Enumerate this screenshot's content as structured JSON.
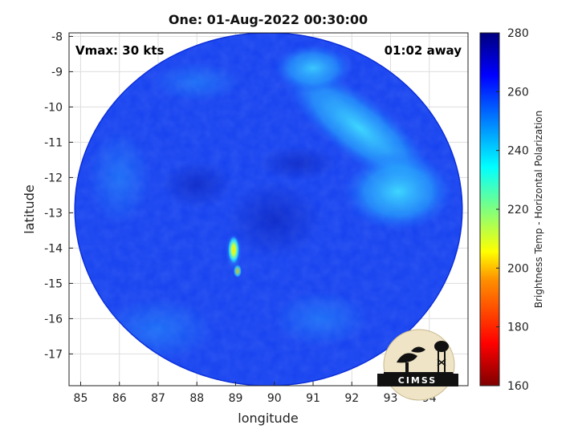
{
  "chart_data": {
    "type": "heatmap",
    "title": "One: 01-Aug-2022 00:30:00",
    "xlabel": "longitude",
    "ylabel": "latitude",
    "xlim": [
      84.7,
      95.0
    ],
    "ylim": [
      -17.9,
      -7.9
    ],
    "x_ticks": [
      85,
      86,
      87,
      88,
      89,
      90,
      91,
      92,
      93,
      94
    ],
    "y_ticks": [
      -8,
      -9,
      -10,
      -11,
      -12,
      -13,
      -14,
      -15,
      -16,
      -17
    ],
    "grid": true,
    "colorbar": {
      "label": "Brightness Temp - Horizontal Polarization",
      "range": [
        160,
        280
      ],
      "ticks": [
        160,
        180,
        200,
        220,
        240,
        260,
        280
      ],
      "colormap": "jet"
    },
    "swath": {
      "center_lon": 89.85,
      "center_lat": -12.9,
      "radius_deg_lon": 5.0,
      "radius_deg_lat": 5.0
    },
    "features": [
      {
        "name": "background",
        "value": 262
      },
      {
        "name": "eye-core",
        "lon": 88.95,
        "lat": -14.05,
        "value": 205
      },
      {
        "name": "inner-ring",
        "lon": 88.95,
        "lat": -14.1,
        "value": 235
      },
      {
        "name": "southern-spot",
        "lon": 89.05,
        "lat": -14.65,
        "value": 240
      },
      {
        "name": "north-east-band",
        "lon": 92.2,
        "lat": -10.6,
        "value": 238
      },
      {
        "name": "east-band",
        "lon": 93.2,
        "lat": -12.4,
        "value": 236
      }
    ],
    "annotations": {
      "vmax": "Vmax: 30 kts",
      "time_away": "01:02 away"
    }
  },
  "logo": {
    "text": "CIMSS"
  }
}
